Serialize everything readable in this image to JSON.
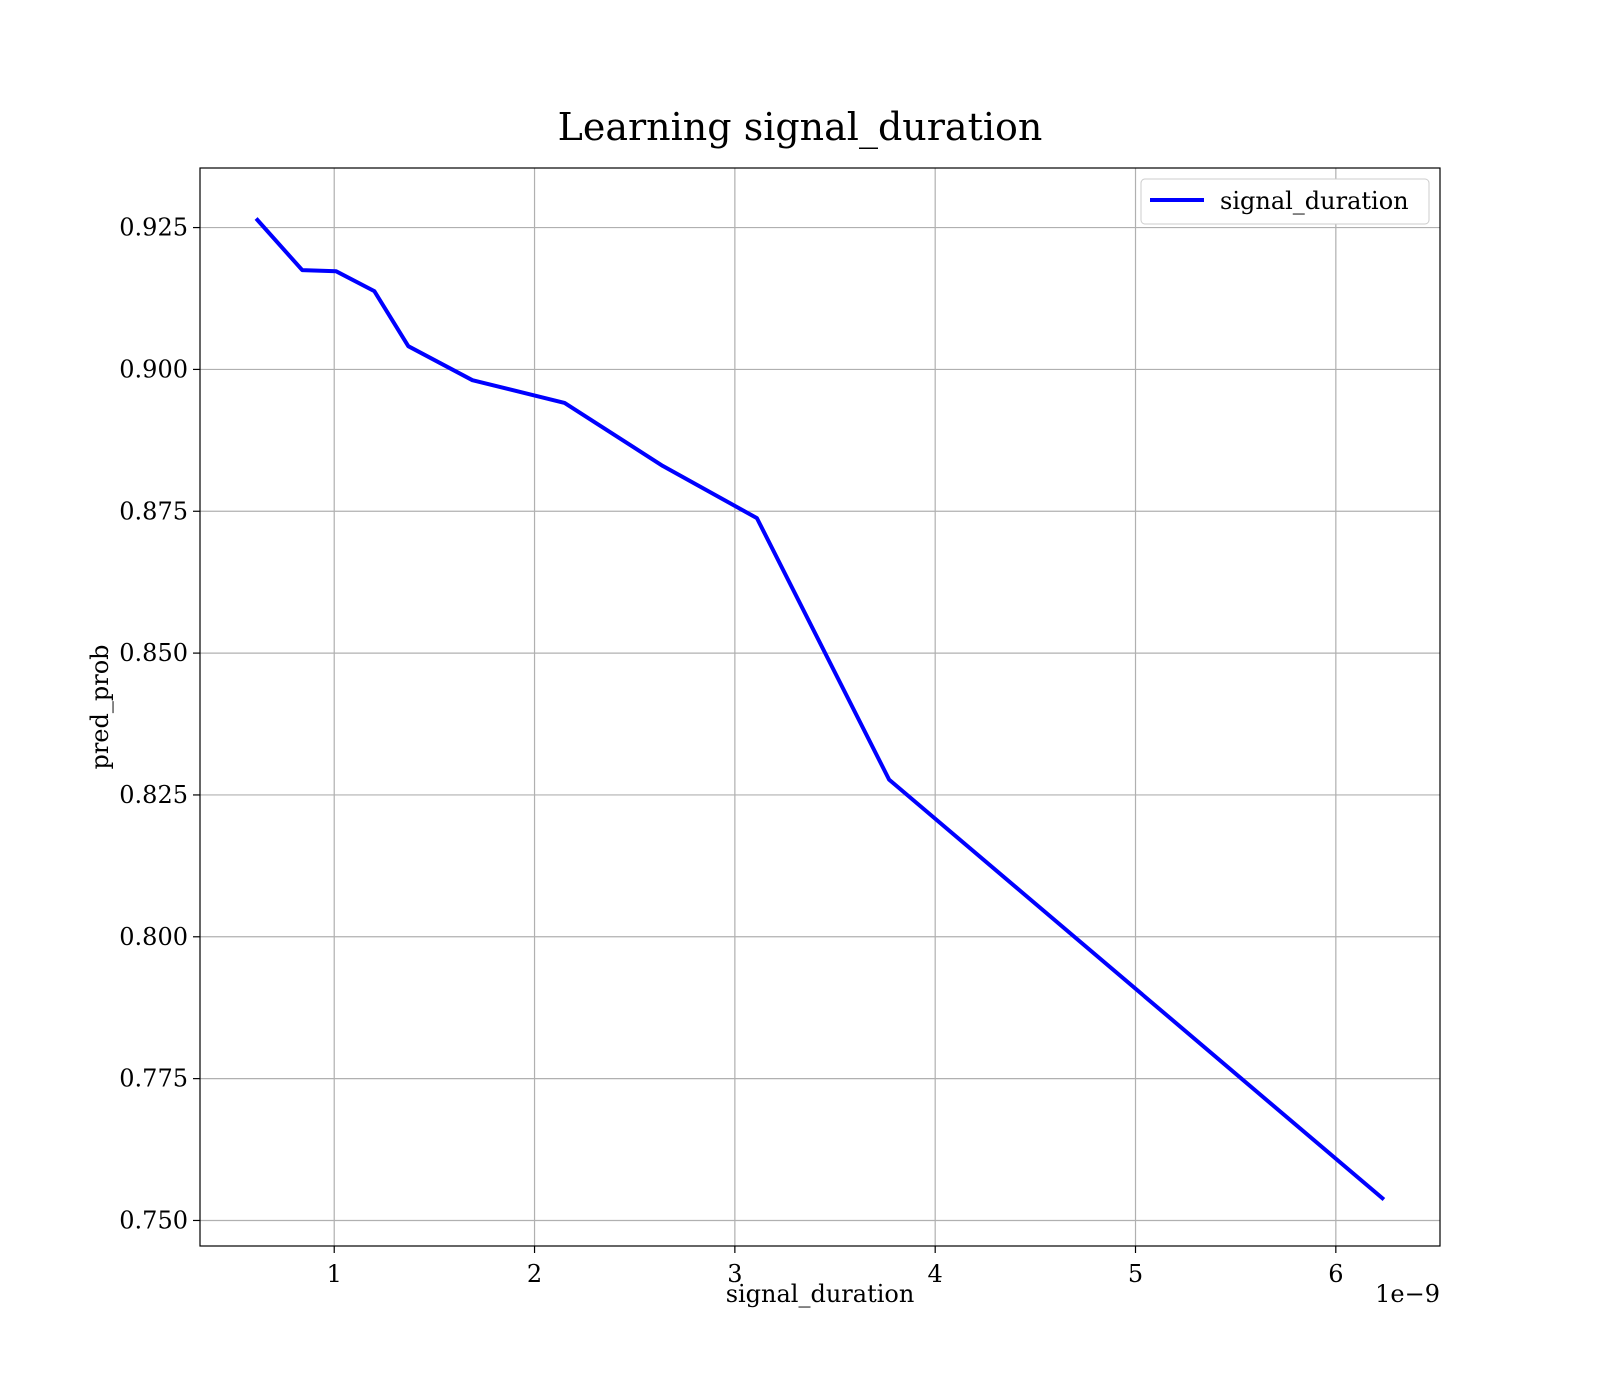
{
  "chart_data": {
    "type": "line",
    "title": "Learning signal_duration",
    "xlabel": "signal_duration",
    "ylabel": "pred_prob",
    "x_offset_label": "1e−9",
    "xlim": [
      0.33,
      6.52
    ],
    "ylim": [
      0.7455,
      0.9355
    ],
    "x_ticks": [
      1,
      2,
      3,
      4,
      5,
      6
    ],
    "x_tick_labels": [
      "1",
      "2",
      "3",
      "4",
      "5",
      "6"
    ],
    "y_ticks": [
      0.75,
      0.775,
      0.8,
      0.825,
      0.85,
      0.875,
      0.9,
      0.925
    ],
    "y_tick_labels": [
      "0.750",
      "0.775",
      "0.800",
      "0.825",
      "0.850",
      "0.875",
      "0.900",
      "0.925"
    ],
    "grid": true,
    "legend_position": "top-right",
    "series": [
      {
        "name": "signal_duration",
        "color": "#0000ff",
        "x": [
          0.61,
          0.84,
          1.01,
          1.2,
          1.37,
          1.69,
          2.15,
          2.64,
          3.11,
          3.77,
          6.24
        ],
        "y": [
          0.9266,
          0.9175,
          0.9173,
          0.9138,
          0.9041,
          0.8981,
          0.8941,
          0.883,
          0.8738,
          0.8277,
          0.7537
        ]
      }
    ]
  }
}
